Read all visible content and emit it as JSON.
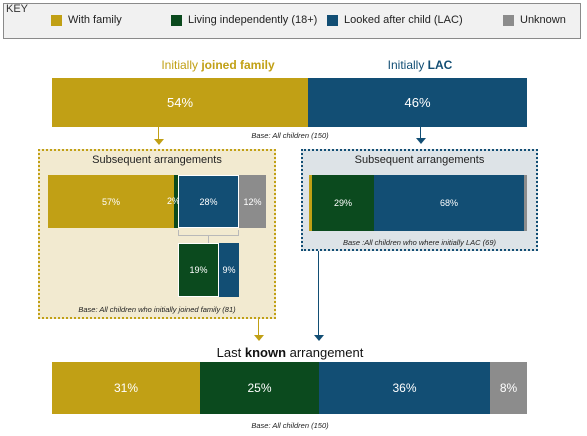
{
  "key": {
    "title": "KEY",
    "items": [
      {
        "label": "With family",
        "color": "#c1a015"
      },
      {
        "label": "Living independently (18+)",
        "color": "#0b4a1e"
      },
      {
        "label": "Looked after child (LAC)",
        "color": "#124e74"
      },
      {
        "label": "Unknown",
        "color": "#8c8c8c"
      }
    ]
  },
  "top": {
    "left_heading_pre": "Initially ",
    "left_heading_bold": "joined family",
    "right_heading_pre": "Initially ",
    "right_heading_bold": "LAC",
    "family_pct": "54%",
    "lac_pct": "46%",
    "base": "Base: All children (150)"
  },
  "left_panel": {
    "title": "Subsequent arrangements",
    "family": "57%",
    "independent": "2%",
    "lac": "28%",
    "unknown": "12%",
    "sub_independent": "19%",
    "sub_lac": "9%",
    "base": "Base: All children who initially joined family (81)"
  },
  "right_panel": {
    "title": "Subsequent arrangements",
    "independent": "29%",
    "lac": "68%",
    "base": "Base :All children who where initially LAC (69)"
  },
  "bottom": {
    "heading_pre": "Last ",
    "heading_bold": "known",
    "heading_post": " arrangement",
    "family": "31%",
    "independent": "25%",
    "lac": "36%",
    "unknown": "8%",
    "base": "Base: All children (150)"
  }
}
